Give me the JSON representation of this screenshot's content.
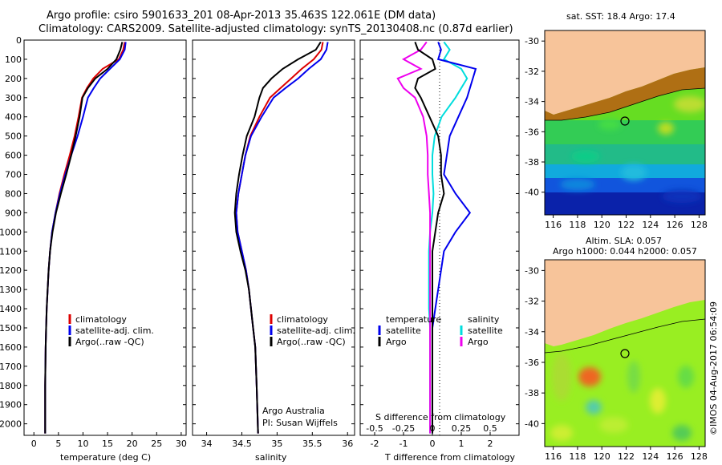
{
  "header": {
    "line1": "Argo profile: csiro 5901633_201 08-Apr-2013 35.463S 122.061E (DM data)",
    "line2": "Climatology: CARS2009. Satellite-adjusted climatology: synTS_20130408.nc (0.87d earlier)"
  },
  "colors": {
    "climatology": "#dd0000",
    "satellite": "#0000ee",
    "argo": "#000000",
    "salinity_satellite": "#00dddd",
    "salinity_argo": "#ee00ee",
    "land": "#f7c49a"
  },
  "depth_axis": {
    "ticks": [
      "0",
      "100",
      "200",
      "300",
      "400",
      "500",
      "600",
      "700",
      "800",
      "900",
      "1000",
      "1100",
      "1200",
      "1300",
      "1400",
      "1500",
      "1600",
      "1700",
      "1800",
      "1900",
      "2000"
    ]
  },
  "temperature_panel": {
    "xlabel": "temperature (deg C)",
    "xticks": [
      "0",
      "5",
      "10",
      "15",
      "20",
      "25",
      "30"
    ],
    "legend": [
      "climatology",
      "satellite-adj. clim.",
      "Argo(..raw -QC)"
    ]
  },
  "salinity_panel": {
    "xlabel": "salinity",
    "xticks": [
      "34",
      "34.5",
      "35",
      "35.5",
      "36"
    ],
    "legend": [
      "climatology",
      "satellite-adj. clim.",
      "Argo(..raw -QC)"
    ],
    "credit1": "Argo Australia",
    "credit2": "PI: Susan Wijffels"
  },
  "difference_panel": {
    "top_label": "S difference from climatology",
    "s_ticks": [
      "-0.5",
      "-0.25",
      "0",
      "0.25",
      "0.5"
    ],
    "xlabel": "T difference from climatology",
    "t_ticks": [
      "-2",
      "-1",
      "0",
      "1",
      "2"
    ],
    "legend_temperature_title": "temperature",
    "legend_salinity_title": "salinity",
    "legend_temperature": [
      "satellite",
      "Argo"
    ],
    "legend_salinity": [
      "satellite",
      "Argo"
    ]
  },
  "map_sst": {
    "title": "sat. SST: 18.4  Argo: 17.4",
    "lat_ticks": [
      "-30",
      "-32",
      "-34",
      "-36",
      "-38",
      "-40"
    ],
    "lon_ticks": [
      "116",
      "118",
      "120",
      "122",
      "124",
      "126",
      "128"
    ]
  },
  "map_sla": {
    "title1": "Altim. SLA: 0.057",
    "title2": "Argo h1000: 0.044  h2000: 0.057",
    "lat_ticks": [
      "-30",
      "-32",
      "-34",
      "-36",
      "-38",
      "-40"
    ],
    "lon_ticks": [
      "116",
      "118",
      "120",
      "122",
      "124",
      "126",
      "128"
    ]
  },
  "footer_note": "©IMOS 04-Aug-2017 06:54:09",
  "chart_data": [
    {
      "type": "line",
      "xlabel": "temperature (deg C)",
      "ylabel": "",
      "xlim": [
        -2,
        31
      ],
      "ylim": [
        2060,
        0
      ],
      "series": [
        {
          "name": "climatology",
          "x": [
            18.5,
            18.2,
            17.3,
            14.0,
            12.1,
            10.8,
            9.8,
            9.1,
            8.3,
            7.3,
            6.2,
            5.2,
            4.4,
            3.7,
            3.3,
            3.0,
            2.8,
            2.6,
            2.5,
            2.4,
            2.3,
            2.3
          ],
          "y": [
            10,
            50,
            100,
            150,
            200,
            250,
            300,
            400,
            500,
            600,
            700,
            800,
            900,
            1000,
            1100,
            1200,
            1300,
            1400,
            1500,
            1600,
            1800,
            2050
          ]
        },
        {
          "name": "satellite-adj. clim.",
          "x": [
            18.7,
            18.5,
            17.5,
            15.5,
            13.5,
            12.2,
            11.0,
            10.0,
            8.9,
            7.6,
            6.4,
            5.3,
            4.4,
            3.7,
            3.3,
            3.0,
            2.8,
            2.6,
            2.5,
            2.4,
            2.3,
            2.3
          ],
          "y": [
            10,
            50,
            100,
            150,
            200,
            250,
            300,
            400,
            500,
            600,
            700,
            800,
            900,
            1000,
            1100,
            1200,
            1300,
            1400,
            1500,
            1600,
            1800,
            2050
          ]
        },
        {
          "name": "Argo(..raw -QC)",
          "x": [
            18.0,
            17.6,
            16.8,
            15.0,
            12.5,
            11.0,
            9.9,
            9.3,
            8.5,
            7.6,
            6.6,
            5.5,
            4.5,
            3.8,
            3.3,
            3.0,
            2.8,
            2.6,
            2.5,
            2.4,
            2.3,
            2.3
          ],
          "y": [
            10,
            50,
            100,
            150,
            200,
            250,
            300,
            400,
            500,
            600,
            700,
            800,
            900,
            1000,
            1100,
            1200,
            1300,
            1400,
            1500,
            1600,
            1800,
            2050
          ]
        }
      ]
    },
    {
      "type": "line",
      "xlabel": "salinity",
      "ylabel": "",
      "xlim": [
        33.8,
        36.1
      ],
      "ylim": [
        2060,
        0
      ],
      "series": [
        {
          "name": "climatology",
          "x": [
            35.65,
            35.63,
            35.52,
            35.35,
            35.2,
            35.05,
            34.9,
            34.75,
            34.62,
            34.55,
            34.5,
            34.45,
            34.42,
            34.44,
            34.5,
            34.56,
            34.6,
            34.63,
            34.66,
            34.69,
            34.71,
            34.73
          ],
          "y": [
            10,
            50,
            100,
            150,
            200,
            250,
            300,
            400,
            500,
            600,
            700,
            800,
            900,
            1000,
            1100,
            1200,
            1300,
            1400,
            1500,
            1600,
            1800,
            2050
          ]
        },
        {
          "name": "satellite-adj. clim.",
          "x": [
            35.72,
            35.7,
            35.62,
            35.45,
            35.3,
            35.12,
            34.95,
            34.78,
            34.63,
            34.55,
            34.5,
            34.45,
            34.42,
            34.44,
            34.5,
            34.56,
            34.6,
            34.63,
            34.66,
            34.69,
            34.71,
            34.73
          ],
          "y": [
            10,
            50,
            100,
            150,
            200,
            250,
            300,
            400,
            500,
            600,
            700,
            800,
            900,
            1000,
            1100,
            1200,
            1300,
            1400,
            1500,
            1600,
            1800,
            2050
          ]
        },
        {
          "name": "Argo(..raw -QC)",
          "x": [
            35.62,
            35.55,
            35.3,
            35.08,
            34.92,
            34.8,
            34.75,
            34.68,
            34.57,
            34.51,
            34.46,
            34.42,
            34.4,
            34.42,
            34.48,
            34.55,
            34.6,
            34.63,
            34.66,
            34.69,
            34.71,
            34.73
          ],
          "y": [
            10,
            50,
            100,
            150,
            200,
            250,
            300,
            400,
            500,
            600,
            700,
            800,
            900,
            1000,
            1100,
            1200,
            1300,
            1400,
            1500,
            1600,
            1800,
            2050
          ]
        }
      ]
    },
    {
      "type": "line",
      "xlabel": "T difference from climatology",
      "ylabel": "",
      "xlim": [
        -2.5,
        3
      ],
      "ylim": [
        2060,
        0
      ],
      "series": [
        {
          "name": "temperature satellite",
          "x": [
            0.2,
            0.3,
            0.2,
            1.5,
            1.4,
            1.3,
            1.2,
            0.9,
            0.6,
            0.5,
            0.4,
            0.8,
            1.3,
            0.8,
            0.4,
            0.3,
            0.2,
            0.1,
            0.0,
            0.0,
            0.0,
            0.0
          ],
          "y": [
            10,
            50,
            100,
            150,
            200,
            250,
            300,
            400,
            500,
            600,
            700,
            800,
            900,
            1000,
            1100,
            1200,
            1300,
            1400,
            1500,
            1600,
            1800,
            2050
          ]
        },
        {
          "name": "temperature Argo",
          "x": [
            -0.6,
            -0.5,
            0.0,
            0.1,
            -0.5,
            -0.6,
            -0.4,
            -0.1,
            0.2,
            0.3,
            0.3,
            0.4,
            0.2,
            0.1,
            0.0,
            0.0,
            0.0,
            0.0,
            0.0,
            0.0,
            0.0,
            0.0
          ],
          "y": [
            10,
            50,
            100,
            150,
            200,
            250,
            300,
            400,
            500,
            600,
            700,
            800,
            900,
            1000,
            1100,
            1200,
            1300,
            1400,
            1500,
            1600,
            1800,
            2050
          ]
        },
        {
          "name": "salinity satellite",
          "x": [
            0.1,
            0.15,
            0.1,
            0.25,
            0.3,
            0.25,
            0.2,
            0.08,
            0.02,
            0.0,
            0.0,
            0.01,
            0.0,
            -0.02,
            -0.03,
            -0.03,
            -0.03,
            -0.03,
            -0.02,
            -0.02,
            -0.02,
            -0.02
          ],
          "y": [
            10,
            50,
            100,
            150,
            200,
            250,
            300,
            400,
            500,
            600,
            700,
            800,
            900,
            1000,
            1100,
            1200,
            1300,
            1400,
            1500,
            1600,
            1800,
            2050
          ]
        },
        {
          "name": "salinity Argo",
          "x": [
            -0.05,
            -0.1,
            -0.25,
            -0.1,
            -0.3,
            -0.25,
            -0.15,
            -0.08,
            -0.05,
            -0.04,
            -0.04,
            -0.03,
            -0.02,
            -0.02,
            -0.02,
            -0.02,
            -0.02,
            -0.02,
            -0.02,
            -0.02,
            -0.02,
            -0.02
          ],
          "y": [
            10,
            50,
            100,
            150,
            200,
            250,
            300,
            400,
            500,
            600,
            700,
            800,
            900,
            1000,
            1100,
            1200,
            1300,
            1400,
            1500,
            1600,
            1800,
            2050
          ]
        }
      ]
    }
  ]
}
